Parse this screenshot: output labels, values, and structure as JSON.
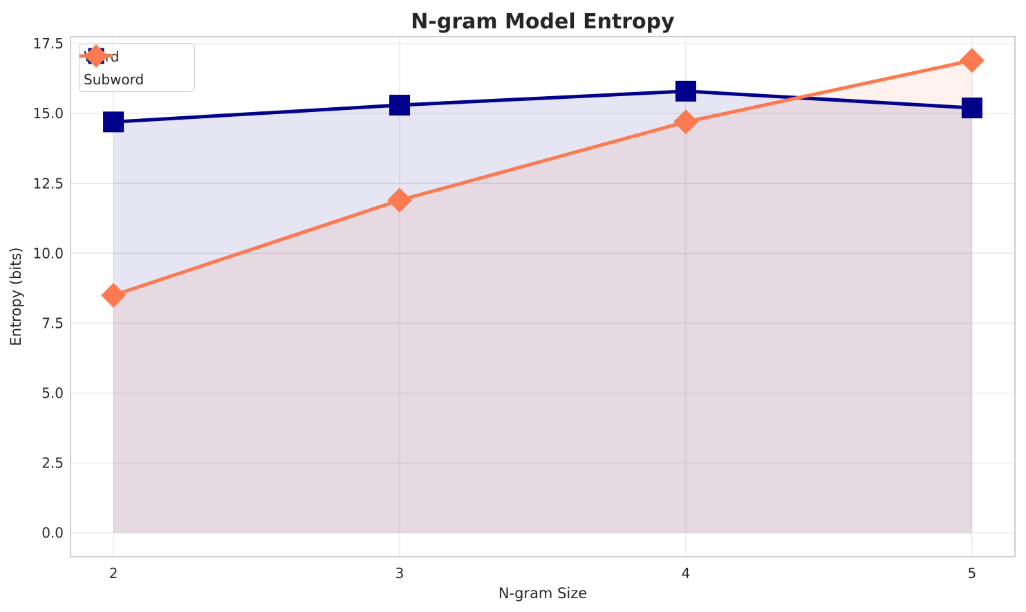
{
  "chart_data": {
    "type": "line",
    "title": "N-gram Model Entropy",
    "xlabel": "N-gram Size",
    "ylabel": "Entropy (bits)",
    "x": [
      2,
      3,
      4,
      5
    ],
    "series": [
      {
        "name": "Word",
        "values": [
          14.7,
          15.3,
          15.8,
          15.2
        ],
        "color": "#00008B",
        "marker": "square"
      },
      {
        "name": "Subword",
        "values": [
          8.5,
          11.9,
          14.7,
          16.9
        ],
        "color": "#FC7A50",
        "marker": "diamond"
      }
    ],
    "fill_to_zero": true,
    "fill_alpha": 0.1,
    "xlim": [
      1.85,
      5.15
    ],
    "ylim": [
      -0.85,
      17.75
    ],
    "xticks": [
      2,
      3,
      4,
      5
    ],
    "xtick_labels": [
      "2",
      "3",
      "4",
      "5"
    ],
    "yticks": [
      0.0,
      2.5,
      5.0,
      7.5,
      10.0,
      12.5,
      15.0,
      17.5
    ],
    "ytick_labels": [
      "0.0",
      "2.5",
      "5.0",
      "7.5",
      "10.0",
      "12.5",
      "15.0",
      "17.5"
    ],
    "grid": true,
    "legend_position": "upper left",
    "colors": {
      "grid": "#e8e8e8",
      "spine": "#c9c9c9",
      "text": "#262626",
      "background": "#ffffff"
    }
  }
}
